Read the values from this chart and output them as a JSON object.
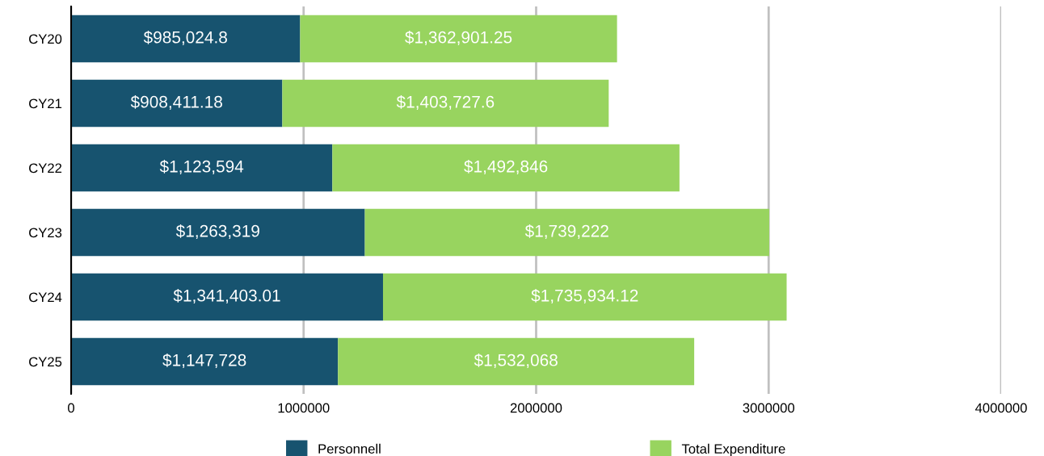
{
  "chart_data": {
    "type": "bar",
    "orientation": "horizontal",
    "stacked": true,
    "categories": [
      "CY20",
      "CY21",
      "CY22",
      "CY23",
      "CY24",
      "CY25"
    ],
    "series": [
      {
        "name": "Personnell",
        "color": "#17536f",
        "values": [
          985024.8,
          908411.18,
          1123594,
          1263319,
          1341403.01,
          1147728
        ],
        "value_labels": [
          "$985,024.8",
          "$908,411.18",
          "$1,123,594",
          "$1,263,319",
          "$1,341,403.01",
          "$1,147,728"
        ]
      },
      {
        "name": "Total Expenditure",
        "color": "#98d45f",
        "values": [
          1362901.25,
          1403727.6,
          1492846,
          1739222,
          1735934.12,
          1532068
        ],
        "value_labels": [
          "$1,362,901.25",
          "$1,403,727.6",
          "$1,492,846",
          "$1,739,222",
          "$1,735,934.12",
          "$1,532,068"
        ]
      }
    ],
    "xlim": [
      0,
      4000000
    ],
    "xticks": [
      0,
      1000000,
      2000000,
      3000000,
      4000000
    ],
    "grid": "x",
    "legend": "bottom"
  }
}
